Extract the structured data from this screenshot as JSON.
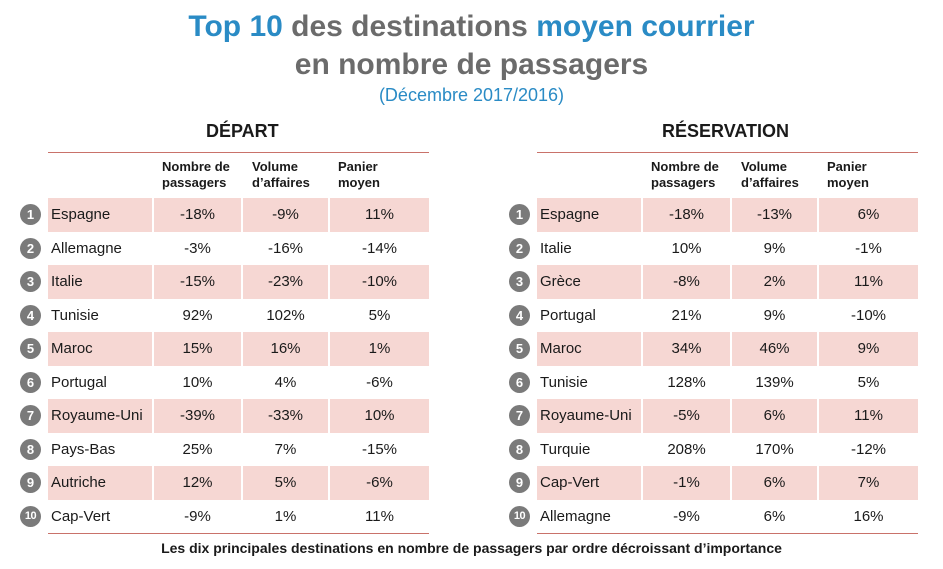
{
  "title": {
    "part1": "Top 10",
    "part2": " des destinations ",
    "part3": "moyen courrier",
    "line2": "en nombre de passagers",
    "subtitle": "(Décembre 2017/2016)"
  },
  "caption": "Les dix principales destinations en nombre de passagers par ordre décroissant d’importance",
  "columns": [
    "Nombre de\npassagers",
    "Volume\nd’affaires",
    "Panier\nmoyen"
  ],
  "colors": {
    "accent": "#2a8bc5",
    "shade": "#f6d7d3",
    "rule": "#c9726a",
    "badge": "#7a7a7a"
  },
  "chart_data": [
    {
      "type": "table",
      "title": "DÉPART",
      "columns": [
        "Nombre de passagers",
        "Volume d’affaires",
        "Panier moyen"
      ],
      "rows": [
        {
          "rank": "1",
          "country": "Espagne",
          "values": [
            "-18%",
            "-9%",
            "11%"
          ]
        },
        {
          "rank": "2",
          "country": "Allemagne",
          "values": [
            "-3%",
            "-16%",
            "-14%"
          ]
        },
        {
          "rank": "3",
          "country": "Italie",
          "values": [
            "-15%",
            "-23%",
            "-10%"
          ]
        },
        {
          "rank": "4",
          "country": "Tunisie",
          "values": [
            "92%",
            "102%",
            "5%"
          ]
        },
        {
          "rank": "5",
          "country": "Maroc",
          "values": [
            "15%",
            "16%",
            "1%"
          ]
        },
        {
          "rank": "6",
          "country": "Portugal",
          "values": [
            "10%",
            "4%",
            "-6%"
          ]
        },
        {
          "rank": "7",
          "country": "Royaume-Uni",
          "values": [
            "-39%",
            "-33%",
            "10%"
          ]
        },
        {
          "rank": "8",
          "country": "Pays-Bas",
          "values": [
            "25%",
            "7%",
            "-15%"
          ]
        },
        {
          "rank": "9",
          "country": "Autriche",
          "values": [
            "12%",
            "5%",
            "-6%"
          ]
        },
        {
          "rank": "10",
          "country": "Cap-Vert",
          "values": [
            "-9%",
            "1%",
            "11%"
          ]
        }
      ]
    },
    {
      "type": "table",
      "title": "RÉSERVATION",
      "columns": [
        "Nombre de passagers",
        "Volume d’affaires",
        "Panier moyen"
      ],
      "rows": [
        {
          "rank": "1",
          "country": "Espagne",
          "values": [
            "-18%",
            "-13%",
            "6%"
          ]
        },
        {
          "rank": "2",
          "country": "Italie",
          "values": [
            "10%",
            "9%",
            "-1%"
          ]
        },
        {
          "rank": "3",
          "country": "Grèce",
          "values": [
            "-8%",
            "2%",
            "11%"
          ]
        },
        {
          "rank": "4",
          "country": "Portugal",
          "values": [
            "21%",
            "9%",
            "-10%"
          ]
        },
        {
          "rank": "5",
          "country": "Maroc",
          "values": [
            "34%",
            "46%",
            "9%"
          ]
        },
        {
          "rank": "6",
          "country": "Tunisie",
          "values": [
            "128%",
            "139%",
            "5%"
          ]
        },
        {
          "rank": "7",
          "country": "Royaume-Uni",
          "values": [
            "-5%",
            "6%",
            "11%"
          ]
        },
        {
          "rank": "8",
          "country": "Turquie",
          "values": [
            "208%",
            "170%",
            "-12%"
          ]
        },
        {
          "rank": "9",
          "country": "Cap-Vert",
          "values": [
            "-1%",
            "6%",
            "7%"
          ]
        },
        {
          "rank": "10",
          "country": "Allemagne",
          "values": [
            "-9%",
            "6%",
            "16%"
          ]
        }
      ]
    }
  ]
}
